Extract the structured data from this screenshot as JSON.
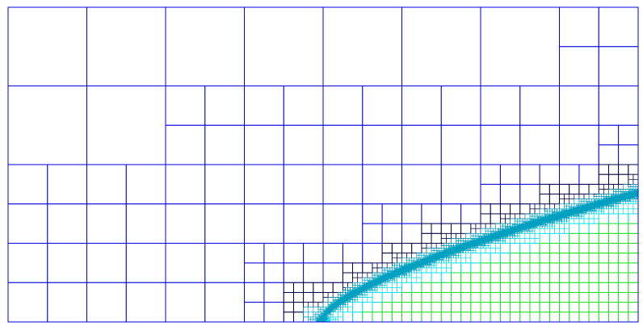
{
  "figure": {
    "kind": "adaptive quadtree mesh",
    "background": "#ffffff",
    "palette": {
      "coarse": "#0000e0",
      "dark": "#00003a",
      "teal": "#00a0c0",
      "cyan": "#00e0e8",
      "green": "#20e020",
      "yellow": "#e0e000"
    }
  }
}
